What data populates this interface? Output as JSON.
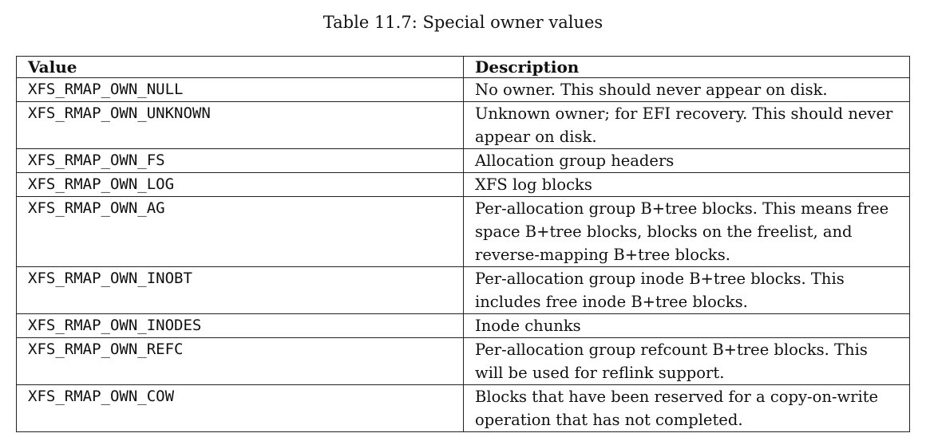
{
  "caption": "Table 11.7: Special owner values",
  "table": {
    "headers": {
      "value": "Value",
      "description": "Description"
    },
    "rows": [
      {
        "value": "XFS_RMAP_OWN_NULL",
        "description": "No owner. This should never appear on disk."
      },
      {
        "value": "XFS_RMAP_OWN_UNKNOWN",
        "description": "Unknown owner; for EFI recovery. This should never appear on disk."
      },
      {
        "value": "XFS_RMAP_OWN_FS",
        "description": "Allocation group headers"
      },
      {
        "value": "XFS_RMAP_OWN_LOG",
        "description": "XFS log blocks"
      },
      {
        "value": "XFS_RMAP_OWN_AG",
        "description": "Per-allocation group B+tree blocks. This means free space B+tree blocks, blocks on the freelist, and reverse-mapping B+tree blocks."
      },
      {
        "value": "XFS_RMAP_OWN_INOBT",
        "description": "Per-allocation group inode B+tree blocks. This includes free inode B+tree blocks."
      },
      {
        "value": "XFS_RMAP_OWN_INODES",
        "description": "Inode chunks"
      },
      {
        "value": "XFS_RMAP_OWN_REFC",
        "description": "Per-allocation group refcount B+tree blocks. This will be used for reflink support."
      },
      {
        "value": "XFS_RMAP_OWN_COW",
        "description": "Blocks that have been reserved for a copy-on-write operation that has not completed."
      }
    ]
  }
}
